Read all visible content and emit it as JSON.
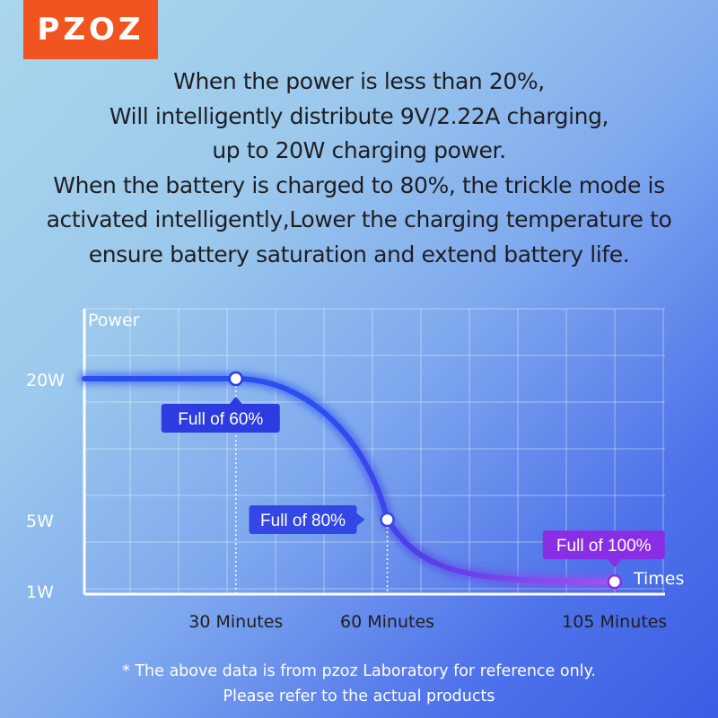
{
  "logo": {
    "text": "PZOZ"
  },
  "headline": {
    "lines": [
      "When the power is less than 20%,",
      "Will intelligently distribute 9V/2.22A charging,",
      "up to 20W charging power.",
      "When the battery is charged to 80%, the trickle mode is",
      "activated intelligently,Lower the charging temperature to",
      "ensure battery saturation and extend battery life."
    ]
  },
  "chart_data": {
    "type": "line",
    "ylabel": "Power",
    "xlabel": "Times",
    "y_ticks": [
      {
        "label": "20W",
        "value": 20
      },
      {
        "label": "5W",
        "value": 5
      },
      {
        "label": "1W",
        "value": 1
      }
    ],
    "x_ticks": [
      {
        "label": "30 Minutes",
        "value": 30
      },
      {
        "label": "60 Minutes",
        "value": 60
      },
      {
        "label": "105 Minutes",
        "value": 105
      }
    ],
    "xlim": [
      0,
      115
    ],
    "series": [
      {
        "points": [
          {
            "x": 0,
            "y": 20
          },
          {
            "x": 30,
            "y": 20
          },
          {
            "x": 60,
            "y": 5
          },
          {
            "x": 105,
            "y": 1.5
          }
        ]
      }
    ],
    "annotations": [
      {
        "x": 30,
        "y": 20,
        "label": "Full of 60%",
        "color": "#2d3ce0"
      },
      {
        "x": 60,
        "y": 5,
        "label": "Full of 80%",
        "color": "#3247e4"
      },
      {
        "x": 105,
        "y": 1.5,
        "label": "Full of 100%",
        "color": "#8a2ee6"
      }
    ],
    "grid": true,
    "colors": {
      "start": "#2a4ff0",
      "mid": "#4d3fe8",
      "end": "#b04cf0"
    }
  },
  "footnote": {
    "line1": "* The above data is from pzoz Laboratory for reference only.",
    "line2": "Please refer to the actual products"
  }
}
